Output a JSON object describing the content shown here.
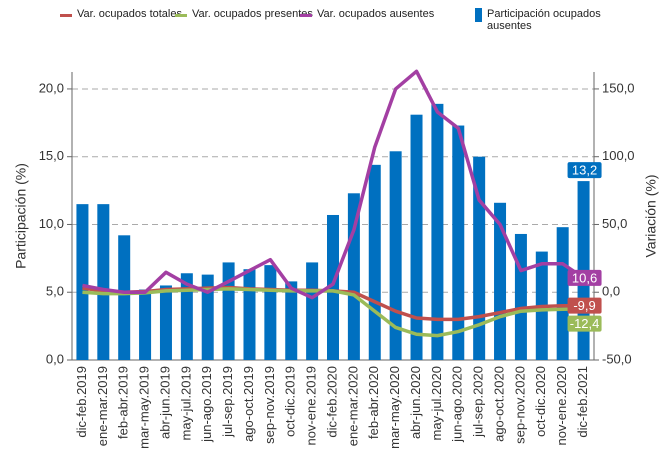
{
  "chart_data": {
    "type": "bar",
    "y_label": "Participación (%)",
    "y2_label": "Variación (%)",
    "categories": [
      "dic-feb.2019",
      "ene-mar.2019",
      "feb-abr.2019",
      "mar-may.2019",
      "abr-jun.2019",
      "may-jul.2019",
      "jun-ago.2019",
      "jul-sep.2019",
      "ago-oct.2019",
      "sep-nov.2019",
      "oct-dic.2019",
      "nov-ene.2019",
      "dic-feb.2020",
      "ene-mar.2020",
      "feb-abr.2020",
      "mar-may.2020",
      "abr-jun.2020",
      "may-jul.2020",
      "jun-ago.2020",
      "jul-sep.2020",
      "ago-oct.2020",
      "sep-nov.2020",
      "oct-dic.2020",
      "nov-ene.2020",
      "dic-feb.2021"
    ],
    "ylim": [
      0,
      21.25
    ],
    "yticks": [
      {
        "value": 0,
        "label": "0,0"
      },
      {
        "value": 5,
        "label": "5,0"
      },
      {
        "value": 10,
        "label": "10,0"
      },
      {
        "value": 15,
        "label": "15,0"
      },
      {
        "value": 20,
        "label": "20,0"
      }
    ],
    "y2lim": [
      -50,
      162.5
    ],
    "y2ticks": [
      {
        "value": -50,
        "label": "-50,0"
      },
      {
        "value": 0,
        "label": "0,0"
      },
      {
        "value": 50,
        "label": "50,0"
      },
      {
        "value": 100,
        "label": "100,0"
      },
      {
        "value": 150,
        "label": "150,0"
      }
    ],
    "grid": true,
    "series": [
      {
        "name": "Var. ocupados totales",
        "type": "line",
        "axis": "y2",
        "color": "#c0504d",
        "values": [
          3,
          1,
          0,
          0.5,
          2,
          2.5,
          3,
          3.5,
          2.5,
          2,
          1.5,
          1.5,
          1,
          0,
          -7,
          -14,
          -19,
          -20,
          -20,
          -18,
          -15,
          -12,
          -10.5,
          -10,
          -9.9
        ],
        "value_labels": [
          null,
          null,
          null,
          null,
          null,
          null,
          null,
          null,
          null,
          null,
          null,
          null,
          null,
          null,
          null,
          null,
          null,
          null,
          null,
          null,
          null,
          null,
          null,
          null,
          "-9,9"
        ]
      },
      {
        "name": "Var. ocupados presentes",
        "type": "line",
        "axis": "y2",
        "color": "#9bbb59",
        "values": [
          0,
          -1,
          -1,
          -0.5,
          1,
          1.5,
          2,
          2.5,
          2,
          1.5,
          1,
          1,
          1,
          -2,
          -14,
          -26,
          -31,
          -32,
          -29,
          -24,
          -18,
          -14,
          -13,
          -12.6,
          -12.4
        ],
        "value_labels": [
          null,
          null,
          null,
          null,
          null,
          null,
          null,
          null,
          null,
          null,
          null,
          null,
          null,
          null,
          null,
          null,
          null,
          null,
          null,
          null,
          null,
          null,
          null,
          null,
          "-12,4"
        ]
      },
      {
        "name": "Var. ocupados ausentes",
        "type": "line",
        "axis": "y2",
        "color": "#a33fa3",
        "values": [
          5,
          2,
          0,
          0,
          14.7,
          6,
          0,
          8,
          16,
          24,
          3,
          -4,
          6,
          46,
          107,
          150,
          163,
          133,
          121,
          68,
          50,
          16,
          21,
          21,
          10.6
        ],
        "value_labels": [
          null,
          null,
          null,
          null,
          null,
          null,
          null,
          null,
          null,
          null,
          null,
          null,
          null,
          null,
          null,
          null,
          null,
          null,
          null,
          null,
          null,
          null,
          null,
          null,
          "10,6"
        ]
      },
      {
        "name": "Participación ocupados ausentes",
        "type": "bar",
        "color": "#0070c0",
        "values": [
          11.5,
          11.5,
          9.2,
          5.2,
          5.5,
          6.4,
          6.3,
          7.2,
          6.7,
          7.0,
          5.8,
          7.2,
          10.7,
          12.3,
          14.4,
          15.4,
          18.1,
          18.9,
          17.3,
          15.0,
          11.6,
          9.3,
          8.0,
          9.8,
          13.2
        ],
        "value_labels": [
          null,
          null,
          null,
          null,
          null,
          null,
          null,
          null,
          null,
          null,
          null,
          null,
          null,
          null,
          null,
          null,
          null,
          null,
          null,
          null,
          null,
          null,
          null,
          null,
          "13,2"
        ]
      }
    ]
  }
}
